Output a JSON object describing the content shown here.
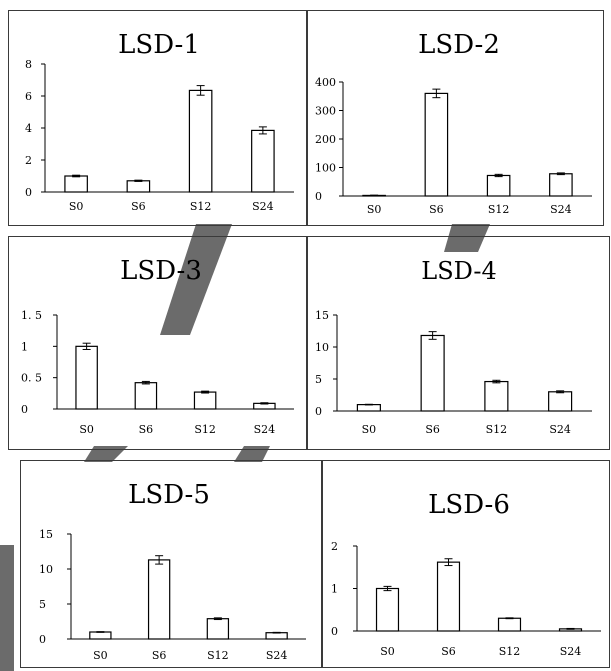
{
  "colors": {
    "frame": "#3a3a3a",
    "bar_fill": "#ffffff",
    "bar_stroke": "#000000",
    "axis": "#000000",
    "watermark": "#6b6b6b"
  },
  "chart_data": [
    {
      "type": "bar",
      "title": "LSD-1",
      "categories": [
        "S0",
        "S6",
        "S12",
        "S24"
      ],
      "values": [
        1.0,
        0.7,
        6.35,
        3.85
      ],
      "errors": [
        0.05,
        0.04,
        0.3,
        0.22
      ],
      "ylim": [
        0,
        8
      ],
      "yticks": [
        0,
        2,
        4,
        6,
        8
      ],
      "ytick_labels": [
        "0",
        "2",
        "4",
        "6",
        "8"
      ]
    },
    {
      "type": "bar",
      "title": "LSD-2",
      "categories": [
        "S0",
        "S6",
        "S12",
        "S24"
      ],
      "values": [
        2,
        360,
        72,
        78
      ],
      "errors": [
        1,
        15,
        4,
        3
      ],
      "ylim": [
        0,
        400
      ],
      "yticks": [
        0,
        100,
        200,
        300,
        400
      ],
      "ytick_labels": [
        "0",
        "100",
        "200",
        "300",
        "400"
      ]
    },
    {
      "type": "bar",
      "title": "LSD-3",
      "categories": [
        "S0",
        "S6",
        "S12",
        "S24"
      ],
      "values": [
        1.0,
        0.42,
        0.27,
        0.09
      ],
      "errors": [
        0.05,
        0.02,
        0.015,
        0.01
      ],
      "ylim": [
        0,
        1.5
      ],
      "yticks": [
        0,
        0.5,
        1,
        1.5
      ],
      "ytick_labels": [
        "0",
        "0. 5",
        "1",
        "1. 5"
      ]
    },
    {
      "type": "bar",
      "title": "LSD-4",
      "categories": [
        "S0",
        "S6",
        "S12",
        "S24"
      ],
      "values": [
        1.0,
        11.8,
        4.6,
        3.0
      ],
      "errors": [
        0.05,
        0.6,
        0.2,
        0.15
      ],
      "ylim": [
        0,
        15
      ],
      "yticks": [
        0,
        5,
        10,
        15
      ],
      "ytick_labels": [
        "0",
        "5",
        "10",
        "15"
      ]
    },
    {
      "type": "bar",
      "title": "LSD-5",
      "categories": [
        "S0",
        "S6",
        "S12",
        "S24"
      ],
      "values": [
        1.0,
        11.3,
        2.9,
        0.9
      ],
      "errors": [
        0.05,
        0.6,
        0.12,
        0.05
      ],
      "ylim": [
        0,
        15
      ],
      "yticks": [
        0,
        5,
        10,
        15
      ],
      "ytick_labels": [
        "0",
        "5",
        "10",
        "15"
      ]
    },
    {
      "type": "bar",
      "title": "LSD-6",
      "categories": [
        "S0",
        "S6",
        "S12",
        "S24"
      ],
      "values": [
        1.0,
        1.62,
        0.3,
        0.05
      ],
      "errors": [
        0.05,
        0.08,
        0.01,
        0.01
      ],
      "ylim": [
        0,
        2
      ],
      "yticks": [
        0,
        1,
        2
      ],
      "ytick_labels": [
        "0",
        "1",
        "2"
      ]
    }
  ]
}
